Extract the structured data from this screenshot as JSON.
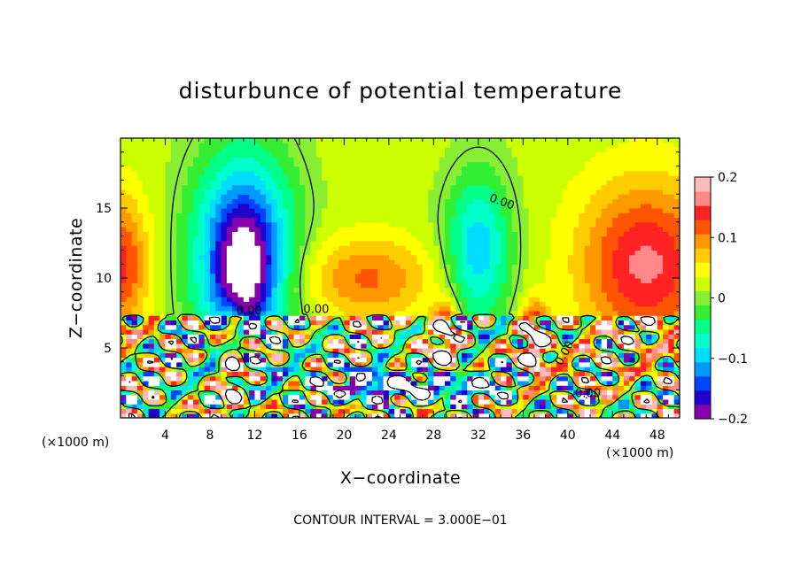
{
  "chart_data": {
    "type": "heatmap",
    "title": "disturbunce of potential temperature",
    "xlabel": "X−coordinate",
    "ylabel": "Z−coordinate",
    "x_unit_left": "(×1000 m)",
    "x_unit_right": "(×1000 m)",
    "xlim": [
      0,
      50
    ],
    "ylim": [
      0,
      20
    ],
    "x_ticks": [
      4,
      8,
      12,
      16,
      20,
      24,
      28,
      32,
      36,
      40,
      44,
      48
    ],
    "x_tick_labels": [
      "4",
      "8",
      "12",
      "16",
      "20",
      "24",
      "28",
      "32",
      "36",
      "40",
      "44",
      "48"
    ],
    "y_ticks": [
      5,
      10,
      15
    ],
    "y_tick_labels": [
      "5",
      "10",
      "15"
    ],
    "colorbar": {
      "range": [
        -0.2,
        0.2
      ],
      "ticks": [
        0.2,
        0.1,
        0,
        -0.1,
        -0.2
      ],
      "tick_labels": [
        "0.2",
        "0.1",
        "0",
        "−0.1",
        "−0.2"
      ],
      "colors": [
        "#8800aa",
        "#2200cc",
        "#0044ff",
        "#0099ff",
        "#00ddff",
        "#00ffcc",
        "#00ff88",
        "#33ee33",
        "#88ee33",
        "#ccff00",
        "#ffff00",
        "#ffcc00",
        "#ff9900",
        "#ff5500",
        "#ff2222",
        "#ff8888",
        "#ffbbbb"
      ]
    },
    "contour_interval_text": "CONTOUR INTERVAL = 3.000E−01",
    "contour_labels": [
      "0.00",
      "0.00",
      "0.00",
      "0.00",
      "0.00"
    ],
    "background_value": 0.02,
    "features": [
      {
        "name": "upper-cold-dome",
        "x": 11,
        "z": 11.5,
        "value": -0.2,
        "sx": 4.5,
        "sz": 7.5
      },
      {
        "name": "upper-cold-core",
        "x": 11,
        "z": 10.5,
        "value": -0.1,
        "sx": 2.0,
        "sz": 3.5
      },
      {
        "name": "upper-cool-column",
        "x": 32,
        "z": 12,
        "value": -0.12,
        "sx": 3.0,
        "sz": 5.5
      },
      {
        "name": "upper-warm-right",
        "x": 47,
        "z": 11,
        "value": 0.14,
        "sx": 6.0,
        "sz": 6.0
      },
      {
        "name": "upper-warm-left",
        "x": 0,
        "z": 11,
        "value": 0.12,
        "sx": 2.5,
        "sz": 5.0
      },
      {
        "name": "upper-warm-mid",
        "x": 22,
        "z": 10,
        "value": 0.09,
        "sx": 6.0,
        "sz": 3.0
      },
      {
        "name": "lower-cold-band",
        "x": 26,
        "z": 2.3,
        "value": -0.3,
        "sx": 9.0,
        "sz": 1.2
      },
      {
        "name": "lower-warm-plume-1",
        "x": 29,
        "z": 5,
        "value": 0.3,
        "sx": 1.2,
        "sz": 2.5
      },
      {
        "name": "lower-warm-plume-2",
        "x": 37,
        "z": 5,
        "value": 0.3,
        "sx": 1.2,
        "sz": 2.5
      },
      {
        "name": "lower-warm-plume-3",
        "x": 10,
        "z": 3,
        "value": 0.3,
        "sx": 1.0,
        "sz": 3.5
      }
    ]
  }
}
